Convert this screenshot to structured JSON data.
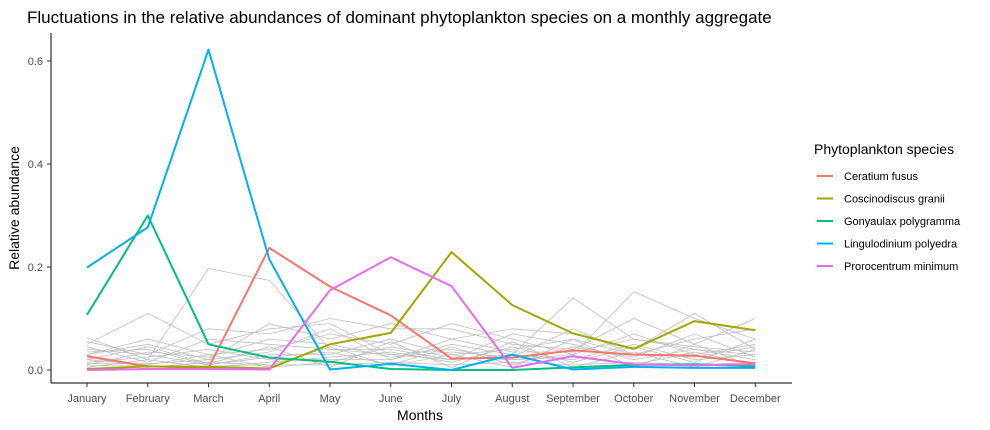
{
  "chart_data": {
    "type": "line",
    "title": "Fluctuations in the relative abundances of dominant phytoplankton species on a monthly aggregate",
    "xlabel": "Months",
    "ylabel": "Relative abundance",
    "categories": [
      "January",
      "February",
      "March",
      "April",
      "May",
      "June",
      "July",
      "August",
      "September",
      "October",
      "November",
      "December"
    ],
    "ylim": [
      -0.02,
      0.65
    ],
    "yticks": [
      0.0,
      0.2,
      0.4,
      0.6
    ],
    "ytick_labels": [
      "0.0",
      "0.2",
      "0.4",
      "0.6"
    ],
    "grid": false,
    "legend": {
      "title": "Phytoplankton species",
      "position": "right"
    },
    "series": [
      {
        "name": "Ceratium fusus",
        "color": "#F8766D",
        "values": [
          0.027,
          0.007,
          0.004,
          0.237,
          0.162,
          0.106,
          0.022,
          0.024,
          0.038,
          0.03,
          0.028,
          0.013
        ]
      },
      {
        "name": "Coscinodiscus granii",
        "color": "#A3A500",
        "values": [
          0.002,
          0.007,
          0.006,
          0.003,
          0.05,
          0.072,
          0.229,
          0.126,
          0.071,
          0.041,
          0.095,
          0.077
        ]
      },
      {
        "name": "Gonyaulax polygramma",
        "color": "#00BF7D",
        "values": [
          0.107,
          0.3,
          0.05,
          0.024,
          0.016,
          0.002,
          0.0,
          0.0,
          0.005,
          0.01,
          0.011,
          0.007
        ]
      },
      {
        "name": "Lingulodinium polyedra",
        "color": "#00B0F6",
        "values": [
          0.199,
          0.277,
          0.622,
          0.215,
          0.001,
          0.012,
          0.0,
          0.03,
          0.001,
          0.006,
          0.004,
          0.004
        ]
      },
      {
        "name": "Prorocentrum minimum",
        "color": "#E76BF3",
        "values": [
          0.0,
          0.002,
          0.002,
          0.001,
          0.155,
          0.219,
          0.163,
          0.004,
          0.027,
          0.011,
          0.009,
          0.011
        ]
      }
    ],
    "background_series_color": "#bfbfbf",
    "background_series": [
      [
        0.063,
        0.02,
        0.197,
        0.174,
        0.04,
        0.03,
        0.02,
        0.03,
        0.14,
        0.06,
        0.04,
        0.03
      ],
      [
        0.05,
        0.11,
        0.05,
        0.08,
        0.09,
        0.03,
        0.04,
        0.02,
        0.03,
        0.152,
        0.1,
        0.06
      ],
      [
        0.04,
        0.03,
        0.08,
        0.07,
        0.1,
        0.08,
        0.08,
        0.05,
        0.04,
        0.1,
        0.05,
        0.1
      ],
      [
        0.03,
        0.05,
        0.02,
        0.09,
        0.06,
        0.09,
        0.06,
        0.08,
        0.07,
        0.04,
        0.11,
        0.04
      ],
      [
        0.02,
        0.01,
        0.03,
        0.04,
        0.07,
        0.05,
        0.09,
        0.06,
        0.03,
        0.07,
        0.03,
        0.05
      ],
      [
        0.035,
        0.04,
        0.01,
        0.03,
        0.03,
        0.06,
        0.03,
        0.04,
        0.06,
        0.03,
        0.06,
        0.08
      ],
      [
        0.015,
        0.025,
        0.04,
        0.02,
        0.02,
        0.02,
        0.05,
        0.03,
        0.02,
        0.05,
        0.02,
        0.03
      ],
      [
        0.045,
        0.015,
        0.06,
        0.05,
        0.04,
        0.04,
        0.02,
        0.07,
        0.05,
        0.02,
        0.04,
        0.02
      ],
      [
        0.01,
        0.035,
        0.025,
        0.06,
        0.05,
        0.025,
        0.035,
        0.025,
        0.08,
        0.03,
        0.025,
        0.045
      ],
      [
        0.025,
        0.005,
        0.015,
        0.01,
        0.01,
        0.015,
        0.01,
        0.015,
        0.01,
        0.015,
        0.01,
        0.015
      ],
      [
        0.055,
        0.03,
        0.01,
        0.025,
        0.035,
        0.01,
        0.045,
        0.01,
        0.045,
        0.025,
        0.07,
        0.025
      ],
      [
        0.005,
        0.02,
        0.005,
        0.015,
        0.025,
        0.035,
        0.015,
        0.045,
        0.015,
        0.045,
        0.015,
        0.06
      ],
      [
        0.03,
        0.06,
        0.03,
        0.005,
        0.015,
        0.045,
        0.025,
        0.02,
        0.025,
        0.01,
        0.035,
        0.01
      ],
      [
        0.012,
        0.012,
        0.02,
        0.035,
        0.08,
        0.02,
        0.06,
        0.035,
        0.035,
        0.06,
        0.045,
        0.035
      ],
      [
        0.02,
        0.045,
        0.012,
        0.045,
        0.005,
        0.055,
        0.005,
        0.055,
        0.005,
        0.035,
        0.005,
        0.04
      ],
      [
        0.008,
        0.008,
        0.008,
        0.008,
        0.045,
        0.008,
        0.03,
        0.005,
        0.06,
        0.005,
        0.05,
        0.005
      ]
    ]
  }
}
